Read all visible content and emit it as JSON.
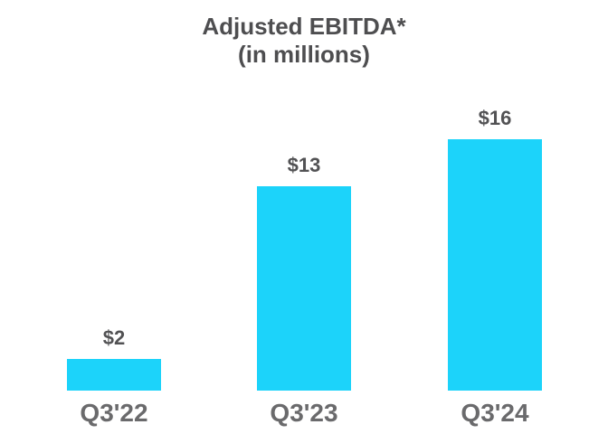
{
  "chart_data": {
    "type": "bar",
    "title": "Adjusted EBITDA*",
    "subtitle": "(in millions)",
    "categories": [
      "Q3'22",
      "Q3'23",
      "Q3'24"
    ],
    "values": [
      2,
      13,
      16
    ],
    "value_labels": [
      "$2",
      "$13",
      "$16"
    ],
    "bar_color": "#1cd3fa",
    "text_color": "#4e4e50",
    "xlabel": "",
    "ylabel": "",
    "ylim": [
      0,
      16
    ],
    "grid": false,
    "legend": false
  }
}
